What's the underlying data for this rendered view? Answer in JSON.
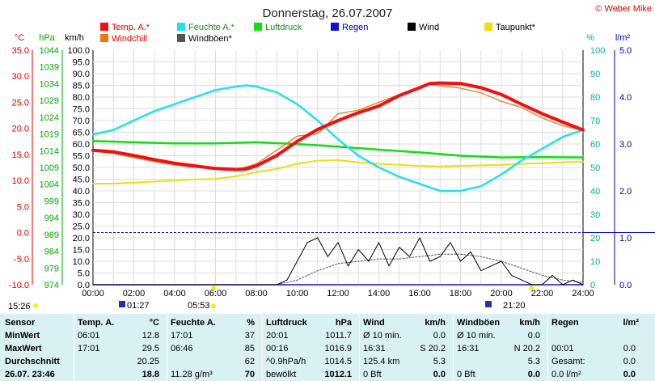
{
  "title": "Donnerstag, 26.07.2007",
  "copyright": "© Weber Mike",
  "colors": {
    "temp": "#ee1111",
    "humidity": "#22e0ee",
    "pressure": "#11dd11",
    "rain": "#1111dd",
    "wind": "#000000",
    "dewpoint": "#eedd11",
    "windchill": "#ee7711",
    "gusts": "#555555"
  },
  "legend": [
    {
      "label": "Temp. A.*",
      "color": "#ee1111"
    },
    {
      "label": "Feuchte A.*",
      "color": "#22e0ee"
    },
    {
      "label": "Luftdruck",
      "color": "#11dd11"
    },
    {
      "label": "Regen",
      "color": "#1111dd"
    },
    {
      "label": "Wind",
      "color": "#000000"
    },
    {
      "label": "Taupunkt*",
      "color": "#eedd11"
    },
    {
      "label": "Windchill",
      "color": "#ee7711"
    },
    {
      "label": "Windböen*",
      "color": "#555555"
    }
  ],
  "axes": {
    "temp_unit": "°C",
    "pressure_unit": "hPa",
    "wind_unit": "km/h",
    "humidity_unit": "%",
    "rain_unit": "l/m²",
    "temp_ticks": [
      "35.0",
      "30.0",
      "25.0",
      "20.0",
      "15.0",
      "10.0",
      "5.0",
      "0.0",
      "-5.0",
      "-10.0"
    ],
    "pressure_ticks": [
      "1044",
      "1039",
      "1034",
      "1029",
      "1024",
      "1019",
      "1014",
      "1009",
      "1004",
      "999",
      "994",
      "989",
      "984",
      "979",
      "974"
    ],
    "wind_ticks": [
      "100.0",
      "95.0",
      "90.0",
      "85.0",
      "80.0",
      "75.0",
      "70.0",
      "65.0",
      "60.0",
      "55.0",
      "50.0",
      "45.0",
      "40.0",
      "35.0",
      "30.0",
      "25.0",
      "20.0",
      "15.0",
      "10.0",
      "5.0",
      "0.0"
    ],
    "humidity_ticks": [
      "100",
      "90",
      "80",
      "70",
      "60",
      "50",
      "40",
      "30",
      "20",
      "10",
      "0"
    ],
    "rain_ticks": [
      "5.0",
      "4.0",
      "3.0",
      "2.0",
      "1.0",
      "0.0"
    ],
    "time_ticks": [
      "00:00",
      "02:00",
      "04:00",
      "06:00",
      "08:00",
      "10:00",
      "12:00",
      "14:00",
      "16:00",
      "18:00",
      "20:00",
      "22:00",
      "24:00"
    ]
  },
  "sun_marks": {
    "sunrise_label": "05:53",
    "sunset_label": "21:20",
    "moonrise_label": "01:27",
    "left_time": "15:26"
  },
  "chart_data": {
    "type": "line",
    "x_unit": "hours",
    "x_range": [
      0,
      24
    ],
    "series": [
      {
        "name": "Temp. A.*",
        "axis": "temp_C",
        "ylim": [
          -10,
          35
        ],
        "x": [
          0,
          1,
          2,
          3,
          4,
          5,
          6,
          7,
          7.5,
          8,
          9,
          10,
          11,
          12,
          13,
          14,
          15,
          16,
          16.5,
          17,
          18,
          19,
          20,
          21,
          22,
          23,
          24
        ],
        "y": [
          15.8,
          15.5,
          14.8,
          14.0,
          13.3,
          12.8,
          12.3,
          12.1,
          12.2,
          12.8,
          14.8,
          17.5,
          19.8,
          21.5,
          23.0,
          24.3,
          26.3,
          27.8,
          28.6,
          28.7,
          28.6,
          27.8,
          26.5,
          24.6,
          22.8,
          21.2,
          19.7
        ]
      },
      {
        "name": "Windchill",
        "axis": "temp_C",
        "ylim": [
          -10,
          35
        ],
        "x": [
          0,
          1,
          2,
          3,
          4,
          5,
          6,
          7,
          8,
          9,
          10,
          11,
          12,
          13,
          14,
          15,
          16,
          16.5,
          17,
          18,
          19,
          20,
          21,
          22,
          23,
          24
        ],
        "y": [
          15.6,
          15.2,
          14.4,
          13.6,
          13.0,
          12.5,
          12.2,
          12.0,
          13.2,
          15.8,
          18.5,
          19.0,
          22.8,
          23.5,
          25.0,
          26.5,
          28.0,
          28.5,
          28.2,
          27.7,
          26.8,
          25.2,
          24.0,
          22.0,
          20.5,
          19.6
        ]
      },
      {
        "name": "Feuchte A.*",
        "axis": "humidity_pct",
        "ylim": [
          0,
          100
        ],
        "x": [
          0,
          1,
          2,
          3,
          4,
          5,
          6,
          7,
          7.5,
          8,
          9,
          10,
          11,
          12,
          13,
          14,
          15,
          16,
          17,
          18,
          19,
          20,
          21,
          22,
          23,
          24
        ],
        "y": [
          64,
          66,
          70,
          74,
          77,
          80,
          83,
          84.5,
          85,
          84.5,
          82,
          77,
          70,
          62,
          55,
          50,
          46,
          43,
          40,
          40,
          42,
          47,
          53,
          58,
          63,
          66
        ]
      },
      {
        "name": "Luftdruck",
        "axis": "pressure_hPa",
        "ylim": [
          974,
          1044
        ],
        "x": [
          0,
          2,
          4,
          6,
          8,
          10,
          12,
          14,
          16,
          18,
          20,
          22,
          24
        ],
        "y": [
          1016.9,
          1016.5,
          1016.2,
          1016.2,
          1016.5,
          1016.0,
          1015.2,
          1014.3,
          1013.5,
          1012.5,
          1012.0,
          1012.1,
          1012.0
        ]
      },
      {
        "name": "Taupunkt*",
        "axis": "temp_C",
        "ylim": [
          -10,
          35
        ],
        "x": [
          0,
          1,
          2,
          3,
          4,
          5,
          6,
          7,
          8,
          9,
          10,
          11,
          12,
          13,
          14,
          15,
          16,
          17,
          18,
          19,
          20,
          21,
          22,
          23,
          24
        ],
        "y": [
          9.4,
          9.4,
          9.6,
          9.8,
          10.0,
          10.2,
          10.3,
          10.8,
          11.6,
          12.2,
          13.2,
          13.8,
          13.9,
          13.5,
          13.2,
          13.0,
          12.8,
          12.7,
          12.8,
          12.9,
          13.0,
          13.2,
          13.3,
          13.5,
          13.6
        ]
      },
      {
        "name": "Wind",
        "axis": "wind_kmh",
        "ylim": [
          0,
          100
        ],
        "x": [
          0,
          9,
          9.5,
          10,
          10.5,
          11,
          11.5,
          12,
          12.5,
          13,
          13.5,
          14,
          14.5,
          15,
          15.5,
          16,
          16.5,
          17,
          17.5,
          18,
          18.5,
          19,
          19.5,
          20,
          20.5,
          21,
          21.5,
          22,
          22.5,
          23,
          23.5,
          24
        ],
        "y": [
          0,
          0,
          2,
          10,
          18,
          20,
          12,
          18,
          8,
          15,
          10,
          18,
          8,
          16,
          12,
          20,
          10,
          12,
          18,
          10,
          14,
          6,
          8,
          10,
          4,
          2,
          0,
          0,
          4,
          0,
          2,
          0
        ]
      },
      {
        "name": "Windböen*",
        "axis": "wind_kmh",
        "ylim": [
          0,
          100
        ],
        "x": [
          0,
          9,
          10,
          11,
          12,
          13,
          14,
          15,
          16,
          17,
          18,
          19,
          20,
          21,
          22,
          23,
          24
        ],
        "y": [
          0,
          0,
          2,
          6,
          9,
          10,
          11,
          11,
          12,
          13,
          13,
          12,
          10,
          7,
          4,
          2,
          1
        ]
      },
      {
        "name": "Regen",
        "axis": "rain_lm2",
        "ylim": [
          0,
          5
        ],
        "x": [
          0,
          24
        ],
        "y": [
          0.0,
          0.0
        ]
      }
    ],
    "reference_line": {
      "temp_C": 0.0
    }
  },
  "stats_table": {
    "headers": [
      {
        "label": "Sensor",
        "unit": ""
      },
      {
        "label": "Temp. A.",
        "unit": "°C"
      },
      {
        "label": "Feuchte A.",
        "unit": "%"
      },
      {
        "label": "Luftdruck",
        "unit": "hPa"
      },
      {
        "label": "Wind",
        "unit": "km/h"
      },
      {
        "label": "Windböen",
        "unit": "km/h"
      },
      {
        "label": "Regen",
        "unit": "l/m²"
      }
    ],
    "rows": [
      [
        "MinWert",
        "06:01",
        "12.8",
        "17:01",
        "37",
        "20:01",
        "1011.7",
        "Ø 10 min.",
        "0.0",
        "Ø 10 min.",
        "0.0",
        "",
        ""
      ],
      [
        "MaxWert",
        "17:01",
        "29.5",
        "06:46",
        "85",
        "00:16",
        "1016.9",
        "16:31",
        "S 20.2",
        "16:31",
        "N 20.2",
        "00:01",
        "0.0"
      ],
      [
        "Durchschnitt",
        "",
        "20.25",
        "",
        "62",
        "^0.9hPa/h",
        "1014.5",
        "125.4 km",
        "5.3",
        "",
        "5.3",
        "Gesamt:",
        "0.0"
      ],
      [
        "26.07. 23:46",
        "",
        "18.8",
        "11.28 g/m³",
        "70",
        "bewölkt",
        "1012.1",
        "0 Bft",
        "0.0",
        "0 Bft",
        "0.0",
        "0.0 l/m²",
        "0.0"
      ]
    ]
  }
}
